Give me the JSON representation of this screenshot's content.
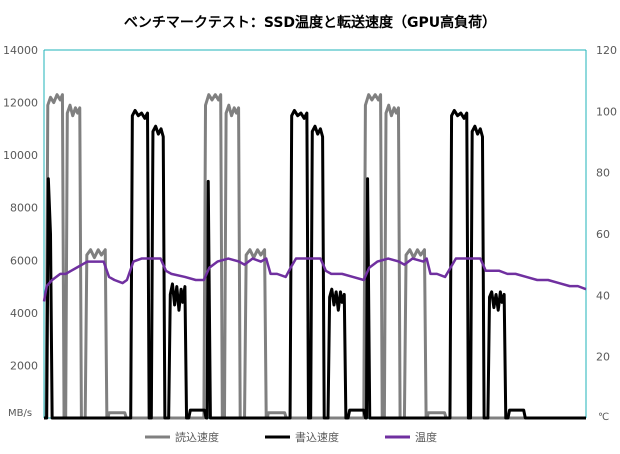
{
  "chart_data": {
    "type": "line",
    "title": "ベンチマークテスト：SSD温度と転送速度（GPU高負荷）",
    "y_left_unit": "MB/s",
    "y_right_unit": "℃",
    "y_left_ticks": [
      "0",
      "2000",
      "4000",
      "6000",
      "8000",
      "10000",
      "12000",
      "14000"
    ],
    "y_right_ticks": [
      "0",
      "20",
      "40",
      "60",
      "80",
      "100",
      "120"
    ],
    "ylim_left": [
      0,
      14000
    ],
    "ylim_right": [
      0,
      120
    ],
    "xlim": [
      0,
      100
    ],
    "grid": false,
    "legend_position": "bottom",
    "series": [
      {
        "name": "読込速度",
        "axis": "left",
        "color": "#808080",
        "points": [
          [
            0,
            0
          ],
          [
            0.4,
            0
          ],
          [
            0.7,
            11900
          ],
          [
            1.2,
            12200
          ],
          [
            1.8,
            12000
          ],
          [
            2.4,
            12300
          ],
          [
            3.0,
            12100
          ],
          [
            3.4,
            12300
          ],
          [
            3.7,
            0
          ],
          [
            4.0,
            0
          ],
          [
            4.3,
            11600
          ],
          [
            4.8,
            11900
          ],
          [
            5.3,
            11500
          ],
          [
            5.8,
            11800
          ],
          [
            6.2,
            11600
          ],
          [
            6.6,
            11800
          ],
          [
            6.9,
            0
          ],
          [
            7.6,
            0
          ],
          [
            7.9,
            6200
          ],
          [
            8.6,
            6400
          ],
          [
            9.3,
            6100
          ],
          [
            10.0,
            6400
          ],
          [
            10.6,
            6200
          ],
          [
            11.3,
            6400
          ],
          [
            11.6,
            0
          ],
          [
            11.8,
            0
          ],
          [
            12.0,
            200
          ],
          [
            14.9,
            200
          ],
          [
            15.2,
            0
          ],
          [
            29.5,
            0
          ],
          [
            29.8,
            11900
          ],
          [
            30.4,
            12300
          ],
          [
            31.0,
            12100
          ],
          [
            31.6,
            12300
          ],
          [
            32.2,
            12100
          ],
          [
            32.6,
            12300
          ],
          [
            32.9,
            0
          ],
          [
            33.3,
            0
          ],
          [
            33.6,
            11600
          ],
          [
            34.1,
            11900
          ],
          [
            34.6,
            11500
          ],
          [
            35.1,
            11800
          ],
          [
            35.5,
            11600
          ],
          [
            35.9,
            11800
          ],
          [
            36.2,
            0
          ],
          [
            37.0,
            0
          ],
          [
            37.3,
            6200
          ],
          [
            38.0,
            6400
          ],
          [
            38.7,
            6100
          ],
          [
            39.4,
            6400
          ],
          [
            40.0,
            6200
          ],
          [
            40.7,
            6400
          ],
          [
            41.0,
            0
          ],
          [
            41.2,
            0
          ],
          [
            41.4,
            200
          ],
          [
            44.4,
            200
          ],
          [
            44.7,
            0
          ],
          [
            59.0,
            0
          ],
          [
            59.3,
            11900
          ],
          [
            59.9,
            12300
          ],
          [
            60.5,
            12100
          ],
          [
            61.1,
            12300
          ],
          [
            61.7,
            12100
          ],
          [
            62.1,
            12300
          ],
          [
            62.4,
            0
          ],
          [
            62.8,
            0
          ],
          [
            63.1,
            11600
          ],
          [
            63.6,
            11900
          ],
          [
            64.1,
            11500
          ],
          [
            64.6,
            11800
          ],
          [
            65.0,
            11600
          ],
          [
            65.4,
            11800
          ],
          [
            65.7,
            0
          ],
          [
            66.5,
            0
          ],
          [
            66.8,
            6200
          ],
          [
            67.5,
            6400
          ],
          [
            68.2,
            6100
          ],
          [
            68.9,
            6400
          ],
          [
            69.5,
            6200
          ],
          [
            70.2,
            6400
          ],
          [
            70.5,
            0
          ],
          [
            70.7,
            0
          ],
          [
            70.9,
            200
          ],
          [
            73.9,
            200
          ],
          [
            74.2,
            0
          ],
          [
            100,
            0
          ]
        ]
      },
      {
        "name": "書込速度",
        "axis": "left",
        "color": "#000000",
        "points": [
          [
            0,
            0
          ],
          [
            0.5,
            0
          ],
          [
            0.8,
            9100
          ],
          [
            1.2,
            7000
          ],
          [
            1.5,
            0
          ],
          [
            16.0,
            0
          ],
          [
            16.3,
            11500
          ],
          [
            16.8,
            11700
          ],
          [
            17.4,
            11500
          ],
          [
            18.0,
            11600
          ],
          [
            18.6,
            11400
          ],
          [
            19.1,
            11600
          ],
          [
            19.4,
            0
          ],
          [
            19.8,
            0
          ],
          [
            20.1,
            10900
          ],
          [
            20.6,
            11100
          ],
          [
            21.1,
            10800
          ],
          [
            21.6,
            11000
          ],
          [
            22.0,
            10700
          ],
          [
            22.3,
            0
          ],
          [
            23.0,
            0
          ],
          [
            23.3,
            4700
          ],
          [
            23.7,
            5100
          ],
          [
            24.1,
            4300
          ],
          [
            24.5,
            5000
          ],
          [
            24.9,
            4100
          ],
          [
            25.3,
            4900
          ],
          [
            25.6,
            4400
          ],
          [
            26.0,
            5000
          ],
          [
            26.3,
            0
          ],
          [
            26.7,
            0
          ],
          [
            27.0,
            300
          ],
          [
            29.6,
            300
          ],
          [
            29.9,
            0
          ],
          [
            30.1,
            0
          ],
          [
            30.3,
            9000
          ],
          [
            30.7,
            0
          ],
          [
            45.4,
            0
          ],
          [
            45.7,
            11500
          ],
          [
            46.2,
            11700
          ],
          [
            46.8,
            11500
          ],
          [
            47.4,
            11600
          ],
          [
            48.0,
            11400
          ],
          [
            48.5,
            11600
          ],
          [
            48.8,
            0
          ],
          [
            49.2,
            0
          ],
          [
            49.5,
            10900
          ],
          [
            50.0,
            11100
          ],
          [
            50.5,
            10800
          ],
          [
            51.0,
            11000
          ],
          [
            51.4,
            10700
          ],
          [
            51.7,
            0
          ],
          [
            52.4,
            0
          ],
          [
            52.7,
            4600
          ],
          [
            53.1,
            4900
          ],
          [
            53.5,
            4300
          ],
          [
            53.9,
            4800
          ],
          [
            54.3,
            4100
          ],
          [
            54.7,
            4800
          ],
          [
            55.0,
            4400
          ],
          [
            55.4,
            4700
          ],
          [
            55.7,
            0
          ],
          [
            56.1,
            0
          ],
          [
            56.4,
            300
          ],
          [
            59.0,
            300
          ],
          [
            59.3,
            0
          ],
          [
            59.5,
            0
          ],
          [
            59.7,
            9100
          ],
          [
            60.1,
            0
          ],
          [
            74.9,
            0
          ],
          [
            75.2,
            11500
          ],
          [
            75.7,
            11700
          ],
          [
            76.3,
            11500
          ],
          [
            76.9,
            11600
          ],
          [
            77.5,
            11400
          ],
          [
            78.0,
            11600
          ],
          [
            78.3,
            0
          ],
          [
            78.7,
            0
          ],
          [
            79.0,
            10900
          ],
          [
            79.5,
            11100
          ],
          [
            80.0,
            10800
          ],
          [
            80.5,
            11000
          ],
          [
            80.9,
            10700
          ],
          [
            81.2,
            0
          ],
          [
            81.9,
            0
          ],
          [
            82.2,
            4600
          ],
          [
            82.6,
            4800
          ],
          [
            83.0,
            4200
          ],
          [
            83.4,
            4700
          ],
          [
            83.8,
            4100
          ],
          [
            84.2,
            4800
          ],
          [
            84.5,
            4400
          ],
          [
            84.9,
            4700
          ],
          [
            85.2,
            0
          ],
          [
            85.6,
            0
          ],
          [
            85.9,
            300
          ],
          [
            88.5,
            300
          ],
          [
            88.8,
            0
          ],
          [
            100,
            0
          ]
        ]
      },
      {
        "name": "温度",
        "axis": "right",
        "color": "#7030A0",
        "points": [
          [
            0,
            38
          ],
          [
            0.5,
            43
          ],
          [
            1.5,
            45
          ],
          [
            3.0,
            47
          ],
          [
            4.0,
            47
          ],
          [
            5.0,
            48
          ],
          [
            6.0,
            49
          ],
          [
            7.0,
            50
          ],
          [
            8.0,
            51
          ],
          [
            10.0,
            51
          ],
          [
            11.0,
            51
          ],
          [
            12.0,
            46
          ],
          [
            13.0,
            45
          ],
          [
            14.5,
            44
          ],
          [
            15.3,
            45
          ],
          [
            16.5,
            51
          ],
          [
            18.0,
            52
          ],
          [
            20.0,
            52
          ],
          [
            21.5,
            52
          ],
          [
            22.5,
            48
          ],
          [
            23.5,
            47
          ],
          [
            26.0,
            46
          ],
          [
            28.0,
            45
          ],
          [
            29.5,
            45
          ],
          [
            30.5,
            49
          ],
          [
            32.0,
            51
          ],
          [
            34.0,
            52
          ],
          [
            36.0,
            51
          ],
          [
            37.0,
            50
          ],
          [
            38.5,
            52
          ],
          [
            40.0,
            51
          ],
          [
            41.0,
            52
          ],
          [
            41.8,
            47
          ],
          [
            43.0,
            47
          ],
          [
            44.6,
            46
          ],
          [
            45.5,
            49
          ],
          [
            46.5,
            52
          ],
          [
            49.0,
            52
          ],
          [
            51.0,
            52
          ],
          [
            52.0,
            48
          ],
          [
            53.0,
            47
          ],
          [
            55.0,
            47
          ],
          [
            57.0,
            46
          ],
          [
            59.0,
            45
          ],
          [
            60.0,
            49
          ],
          [
            61.5,
            51
          ],
          [
            63.5,
            52
          ],
          [
            65.5,
            51
          ],
          [
            66.5,
            50
          ],
          [
            68.0,
            52
          ],
          [
            70.0,
            51
          ],
          [
            70.6,
            52
          ],
          [
            71.3,
            47
          ],
          [
            72.5,
            47
          ],
          [
            74.0,
            46
          ],
          [
            75.0,
            49
          ],
          [
            76.0,
            52
          ],
          [
            78.5,
            52
          ],
          [
            80.5,
            52
          ],
          [
            81.5,
            48
          ],
          [
            82.5,
            48
          ],
          [
            84.0,
            48
          ],
          [
            85.5,
            47
          ],
          [
            87.0,
            47
          ],
          [
            89.0,
            46
          ],
          [
            91.0,
            45
          ],
          [
            93.0,
            45
          ],
          [
            95.0,
            44
          ],
          [
            97.0,
            43
          ],
          [
            98.5,
            43
          ],
          [
            100,
            42
          ]
        ]
      }
    ]
  }
}
